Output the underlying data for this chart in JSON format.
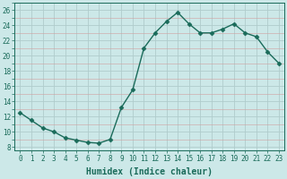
{
  "x": [
    0,
    1,
    2,
    3,
    4,
    5,
    6,
    7,
    8,
    9,
    10,
    11,
    12,
    13,
    14,
    15,
    16,
    17,
    18,
    19,
    20,
    21,
    22,
    23
  ],
  "y": [
    12.5,
    11.5,
    10.5,
    10.0,
    9.2,
    8.9,
    8.6,
    8.5,
    9.0,
    13.2,
    15.5,
    21.0,
    23.0,
    24.5,
    25.7,
    24.2,
    23.0,
    23.0,
    23.5,
    24.2,
    23.0,
    22.5,
    20.5,
    19.0
  ],
  "line_color": "#1a6b5a",
  "marker": "D",
  "markersize": 2.5,
  "linewidth": 1.0,
  "bg_color": "#cce8e8",
  "grid_color": "#b0cccc",
  "xlabel": "Humidex (Indice chaleur)",
  "xlabel_fontsize": 7,
  "ylabel_ticks": [
    8,
    10,
    12,
    14,
    16,
    18,
    20,
    22,
    24,
    26
  ],
  "ylim": [
    7.5,
    27.0
  ],
  "xlim": [
    -0.5,
    23.5
  ],
  "xtick_labels": [
    "0",
    "1",
    "2",
    "3",
    "4",
    "5",
    "6",
    "7",
    "8",
    "9",
    "10",
    "11",
    "12",
    "13",
    "14",
    "15",
    "16",
    "17",
    "18",
    "19",
    "20",
    "21",
    "22",
    "23"
  ],
  "tick_fontsize": 5.5
}
